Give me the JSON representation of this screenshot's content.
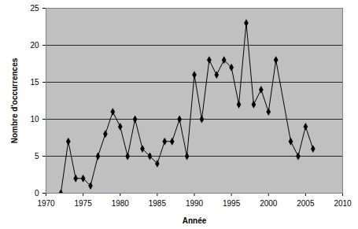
{
  "chart_data": {
    "type": "line",
    "x_label": "Année",
    "y_label": "Nombre d'occurrences",
    "x": [
      1972,
      1973,
      1974,
      1975,
      1976,
      1977,
      1978,
      1979,
      1980,
      1981,
      1982,
      1983,
      1984,
      1985,
      1986,
      1987,
      1988,
      1989,
      1990,
      1991,
      1992,
      1993,
      1994,
      1995,
      1996,
      1997,
      1998,
      1999,
      2000,
      2001,
      2003,
      2004,
      2005,
      2006
    ],
    "values": [
      0,
      7,
      2,
      2,
      1,
      5,
      8,
      11,
      9,
      5,
      10,
      6,
      5,
      4,
      7,
      7,
      10,
      5,
      16,
      10,
      18,
      16,
      18,
      17,
      12,
      23,
      12,
      14,
      11,
      18,
      7,
      5,
      9,
      6
    ],
    "color": "#000000",
    "marker": "diamond",
    "line_style": "solid",
    "xlim": [
      1970,
      2010
    ],
    "xticks": [
      1970,
      1975,
      1980,
      1985,
      1990,
      1995,
      2000,
      2005,
      2010
    ],
    "ylim": [
      0,
      25
    ],
    "yticks": [
      0,
      5,
      10,
      15,
      20,
      25
    ],
    "grid": true
  }
}
